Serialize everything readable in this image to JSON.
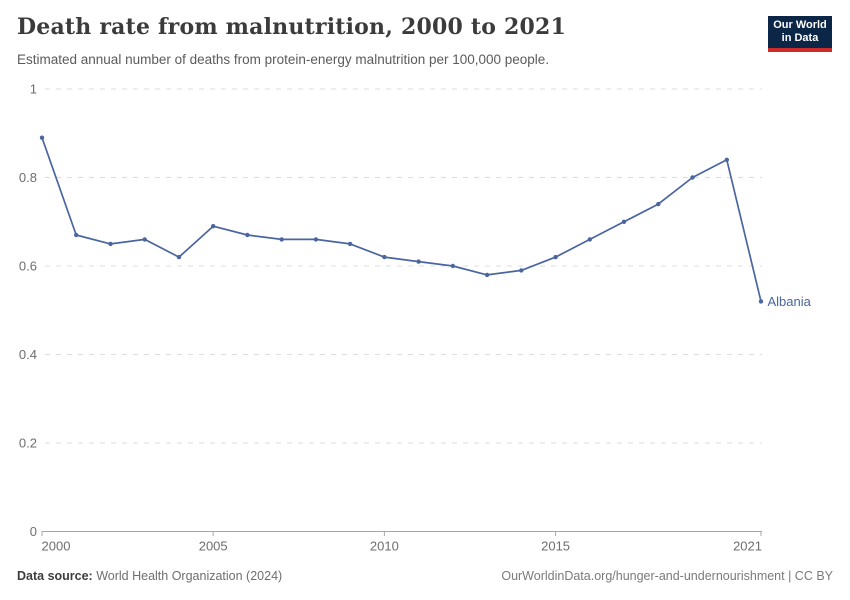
{
  "header": {
    "title": "Death rate from malnutrition, 2000 to 2021",
    "subtitle": "Estimated annual number of deaths from protein-energy malnutrition per 100,000 people.",
    "logo": {
      "line1": "Our World",
      "line2": "in Data",
      "bg_color": "#0c2647",
      "accent_color": "#ce2b2b"
    }
  },
  "chart_data": {
    "type": "line",
    "title": "Death rate from malnutrition, 2000 to 2021",
    "entity_label": "Albania",
    "x": [
      2000,
      2001,
      2002,
      2003,
      2004,
      2005,
      2006,
      2007,
      2008,
      2009,
      2010,
      2011,
      2012,
      2013,
      2014,
      2015,
      2016,
      2017,
      2018,
      2019,
      2020,
      2021
    ],
    "values": [
      0.89,
      0.67,
      0.65,
      0.66,
      0.62,
      0.69,
      0.67,
      0.66,
      0.66,
      0.65,
      0.62,
      0.61,
      0.6,
      0.58,
      0.59,
      0.62,
      0.66,
      0.7,
      0.74,
      0.8,
      0.84,
      0.52
    ],
    "xlabel": "",
    "ylabel": "",
    "xlim": [
      2000,
      2021
    ],
    "ylim": [
      0,
      1
    ],
    "y_ticks": [
      {
        "v": 0,
        "label": "0"
      },
      {
        "v": 0.2,
        "label": "0.2"
      },
      {
        "v": 0.4,
        "label": "0.4"
      },
      {
        "v": 0.6,
        "label": "0.6"
      },
      {
        "v": 0.8,
        "label": "0.8"
      },
      {
        "v": 1,
        "label": "1"
      }
    ],
    "x_ticks": [
      {
        "v": 2000,
        "label": "2000"
      },
      {
        "v": 2005,
        "label": "2005"
      },
      {
        "v": 2010,
        "label": "2010"
      },
      {
        "v": 2015,
        "label": "2015"
      },
      {
        "v": 2021,
        "label": "2021"
      }
    ],
    "grid": "horizontal-dashed",
    "legend_position": "end-of-line",
    "line_color": "#4a65a0",
    "grid_color": "#dcdcdc",
    "axis_color": "#a7a7a7",
    "tick_label_color": "#6e6e6e"
  },
  "footer": {
    "source_label": "Data source:",
    "source_value": " World Health Organization (2024)",
    "credit": "OurWorldinData.org/hunger-and-undernourishment | CC BY"
  }
}
